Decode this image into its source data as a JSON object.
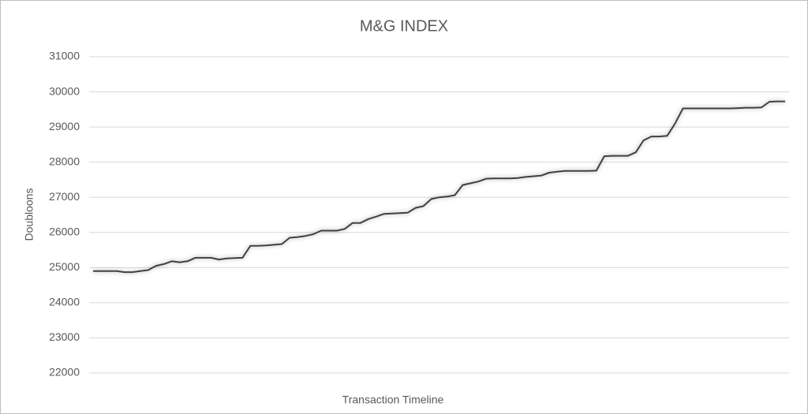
{
  "chart_data": {
    "type": "line",
    "title": "M&G INDEX",
    "x_label": "Transaction Timeline",
    "y_label": "Doubloons",
    "ylim": [
      22000,
      31000
    ],
    "yticks": [
      22000,
      23000,
      24000,
      25000,
      26000,
      27000,
      28000,
      29000,
      30000,
      31000
    ],
    "grid": true,
    "color": "#404040",
    "values": [
      24900,
      24900,
      24900,
      24900,
      24870,
      24870,
      24900,
      24930,
      25050,
      25100,
      25180,
      25150,
      25180,
      25280,
      25280,
      25280,
      25230,
      25260,
      25270,
      25280,
      25620,
      25620,
      25630,
      25650,
      25670,
      25850,
      25870,
      25900,
      25950,
      26050,
      26050,
      26050,
      26100,
      26270,
      26270,
      26380,
      26450,
      26530,
      26540,
      26550,
      26560,
      26700,
      26750,
      26950,
      27000,
      27020,
      27060,
      27350,
      27400,
      27450,
      27530,
      27540,
      27540,
      27540,
      27550,
      27580,
      27600,
      27620,
      27700,
      27730,
      27750,
      27750,
      27750,
      27750,
      27760,
      28170,
      28180,
      28180,
      28180,
      28280,
      28620,
      28730,
      28730,
      28750,
      29100,
      29530,
      29530,
      29530,
      29530,
      29530,
      29530,
      29530,
      29540,
      29550,
      29550,
      29560,
      29720,
      29730,
      29730
    ]
  }
}
